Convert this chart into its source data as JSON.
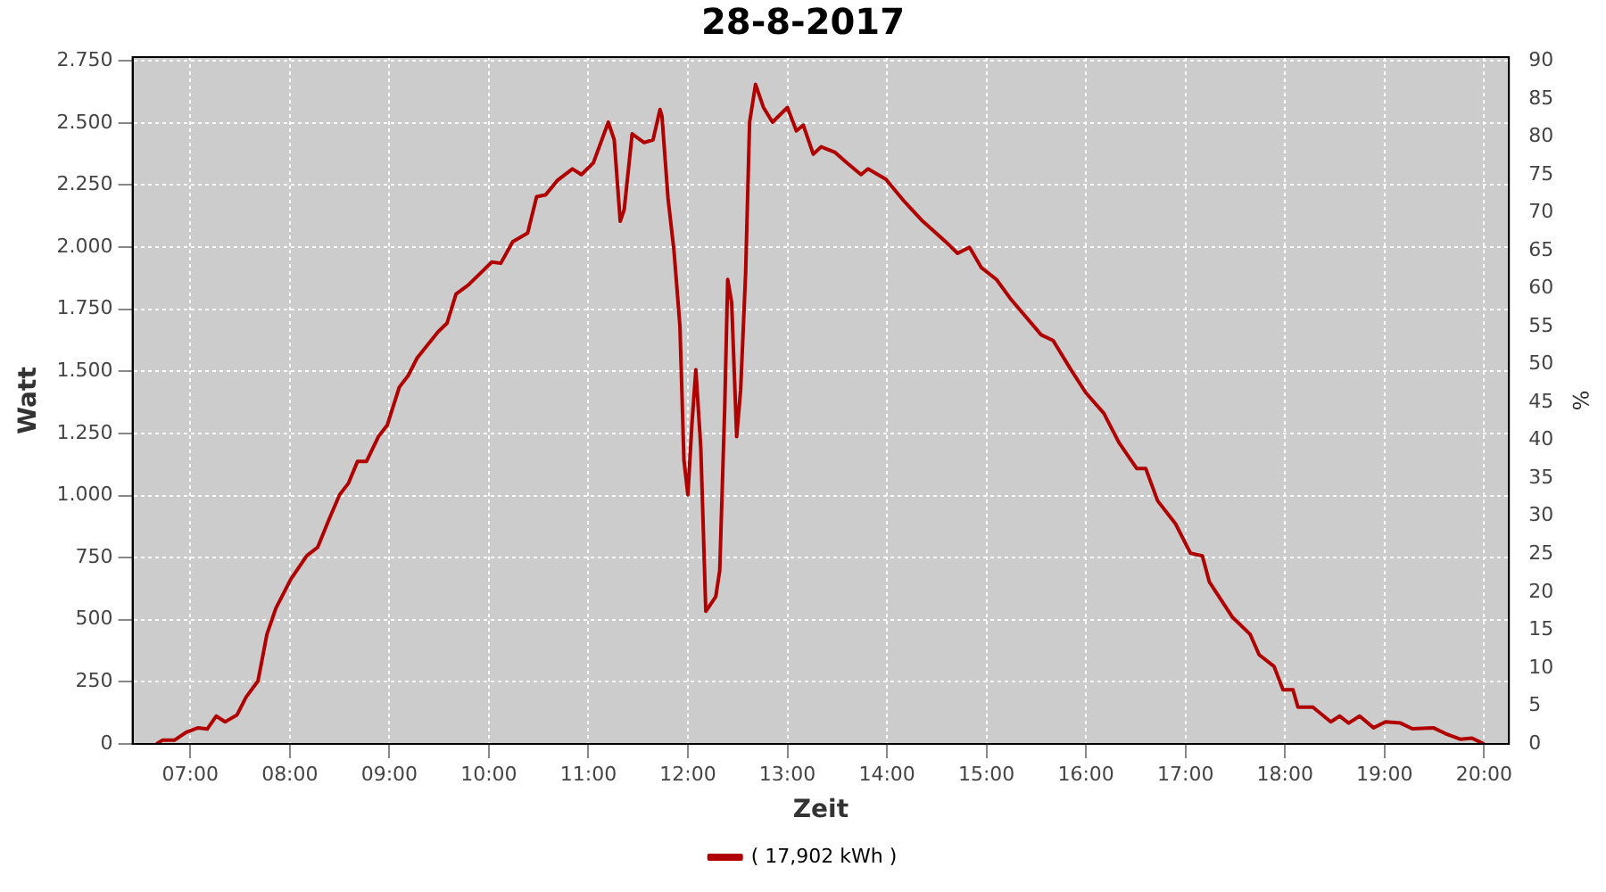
{
  "chart_data": {
    "type": "line",
    "title": "28-8-2017",
    "xlabel": "Zeit",
    "ylabel": "Watt",
    "y2label": "%",
    "xlim": [
      6.42,
      20.25
    ],
    "xticks": [
      {
        "value": 7,
        "label": "07:00"
      },
      {
        "value": 8,
        "label": "08:00"
      },
      {
        "value": 9,
        "label": "09:00"
      },
      {
        "value": 10,
        "label": "10:00"
      },
      {
        "value": 11,
        "label": "11:00"
      },
      {
        "value": 12,
        "label": "12:00"
      },
      {
        "value": 13,
        "label": "13:00"
      },
      {
        "value": 14,
        "label": "14:00"
      },
      {
        "value": 15,
        "label": "15:00"
      },
      {
        "value": 16,
        "label": "16:00"
      },
      {
        "value": 17,
        "label": "17:00"
      },
      {
        "value": 18,
        "label": "18:00"
      },
      {
        "value": 19,
        "label": "19:00"
      },
      {
        "value": 20,
        "label": "20:00"
      }
    ],
    "ylim": [
      0,
      2765
    ],
    "yticks": [
      0,
      250,
      500,
      750,
      {
        "value": 1000,
        "label": "1.000"
      },
      {
        "value": 1250,
        "label": "1.250"
      },
      {
        "value": 1500,
        "label": "1.500"
      },
      {
        "value": 1750,
        "label": "1.750"
      },
      {
        "value": 2000,
        "label": "2.000"
      },
      {
        "value": 2250,
        "label": "2.250"
      },
      {
        "value": 2500,
        "label": "2.500"
      },
      {
        "value": 2750,
        "label": "2.750"
      }
    ],
    "y2lim": [
      0,
      90.5
    ],
    "y2ticks": [
      0,
      5,
      10,
      15,
      20,
      25,
      30,
      35,
      40,
      45,
      50,
      55,
      60,
      65,
      70,
      75,
      80,
      85,
      90
    ],
    "grid": true,
    "legend": "bottom",
    "marker": "none",
    "line_style": "solid",
    "x": [
      6.66,
      6.72,
      6.84,
      6.96,
      7.08,
      7.17,
      7.26,
      7.35,
      7.47,
      7.56,
      7.68,
      7.77,
      7.86,
      8.01,
      8.17,
      8.28,
      8.4,
      8.5,
      8.59,
      8.68,
      8.77,
      8.89,
      8.98,
      9.1,
      9.19,
      9.28,
      9.49,
      9.58,
      9.67,
      9.79,
      9.91,
      10.03,
      10.12,
      10.24,
      10.39,
      10.48,
      10.57,
      10.69,
      10.84,
      10.93,
      11.05,
      11.2,
      11.26,
      11.32,
      11.36,
      11.44,
      11.56,
      11.65,
      11.72,
      11.74,
      11.8,
      11.86,
      11.92,
      11.96,
      12.0,
      12.04,
      12.08,
      12.13,
      12.18,
      12.28,
      12.32,
      12.37,
      12.4,
      12.44,
      12.49,
      12.53,
      12.58,
      12.62,
      12.68,
      12.76,
      12.85,
      13.0,
      13.09,
      13.16,
      13.26,
      13.34,
      13.48,
      13.6,
      13.74,
      13.81,
      13.99,
      14.17,
      14.35,
      14.59,
      14.71,
      14.83,
      14.95,
      15.1,
      15.25,
      15.55,
      15.67,
      15.85,
      16.0,
      16.18,
      16.33,
      16.51,
      16.6,
      16.72,
      16.9,
      17.05,
      17.17,
      17.24,
      17.47,
      17.65,
      17.74,
      17.89,
      17.98,
      18.08,
      18.13,
      18.28,
      18.46,
      18.55,
      18.64,
      18.75,
      18.89,
      19.01,
      19.16,
      19.28,
      19.49,
      19.61,
      19.76,
      19.88,
      20.0
    ],
    "series": [
      {
        "name": "( 17,902 kWh )",
        "color": "#b00000",
        "values": [
          0,
          15,
          15,
          47,
          65,
          60,
          112,
          89,
          117,
          188,
          253,
          441,
          546,
          663,
          757,
          792,
          909,
          1003,
          1050,
          1137,
          1137,
          1237,
          1284,
          1436,
          1483,
          1554,
          1659,
          1694,
          1811,
          1846,
          1893,
          1940,
          1935,
          2022,
          2057,
          2203,
          2210,
          2269,
          2315,
          2292,
          2339,
          2503,
          2432,
          2104,
          2151,
          2456,
          2421,
          2432,
          2554,
          2526,
          2198,
          1987,
          1682,
          1144,
          1003,
          1284,
          1506,
          1190,
          534,
          593,
          698,
          1354,
          1870,
          1776,
          1237,
          1425,
          1893,
          2503,
          2655,
          2562,
          2503,
          2562,
          2468,
          2491,
          2374,
          2404,
          2381,
          2339,
          2292,
          2315,
          2273,
          2186,
          2108,
          2022,
          1975,
          1999,
          1917,
          1870,
          1788,
          1647,
          1624,
          1506,
          1413,
          1331,
          1214,
          1109,
          1109,
          979,
          886,
          768,
          757,
          652,
          511,
          441,
          359,
          312,
          218,
          218,
          148,
          148,
          89,
          112,
          84,
          112,
          65,
          89,
          84,
          61,
          65,
          42,
          19,
          23,
          0
        ]
      }
    ]
  }
}
